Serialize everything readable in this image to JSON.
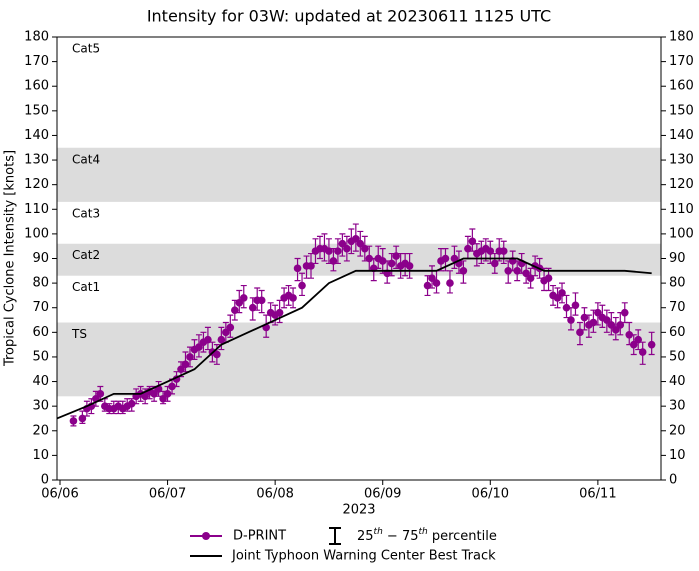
{
  "chart_data": {
    "type": "errorbar_line",
    "title": "Intensity for 03W: updated at 20230611 1125 UTC",
    "x_label": "2023",
    "y_label": "Tropical Cyclone Intensity [knots]",
    "xlim": [
      "2023-06-05T23:20",
      "2023-06-11T14:05"
    ],
    "xticks": [
      {
        "value": "2023-06-06T00:00",
        "label": "06/06"
      },
      {
        "value": "2023-06-07T00:00",
        "label": "06/07"
      },
      {
        "value": "2023-06-08T00:00",
        "label": "06/08"
      },
      {
        "value": "2023-06-09T00:00",
        "label": "06/09"
      },
      {
        "value": "2023-06-10T00:00",
        "label": "06/10"
      },
      {
        "value": "2023-06-11T00:00",
        "label": "06/11"
      }
    ],
    "ylim": [
      0,
      180
    ],
    "yticks": [
      0,
      10,
      20,
      30,
      40,
      50,
      60,
      70,
      80,
      90,
      100,
      110,
      120,
      130,
      140,
      150,
      160,
      170,
      180
    ],
    "intensity_categories": [
      {
        "label": "TS",
        "range": [
          34,
          64
        ],
        "shaded": true
      },
      {
        "label": "Cat1",
        "range": [
          64,
          83
        ],
        "shaded": false
      },
      {
        "label": "Cat2",
        "range": [
          83,
          96
        ],
        "shaded": true
      },
      {
        "label": "Cat3",
        "range": [
          96,
          113
        ],
        "shaded": false
      },
      {
        "label": "Cat4",
        "range": [
          113,
          135
        ],
        "shaded": true
      },
      {
        "label": "Cat5",
        "range": [
          135,
          180
        ],
        "shaded": false
      }
    ],
    "band_color": "#dcdcdc",
    "errorbar_label": [
      "25",
      "th",
      " − 75",
      "th",
      " percentile"
    ],
    "series": [
      {
        "name": "D-PRINT",
        "color": "#8b008b",
        "style": "markers",
        "x": [
          "2023-06-06T03:00",
          "2023-06-06T05:00",
          "2023-06-06T06:00",
          "2023-06-06T07:00",
          "2023-06-06T08:00",
          "2023-06-06T09:00",
          "2023-06-06T10:00",
          "2023-06-06T11:00",
          "2023-06-06T12:00",
          "2023-06-06T13:00",
          "2023-06-06T14:00",
          "2023-06-06T15:00",
          "2023-06-06T16:00",
          "2023-06-06T17:00",
          "2023-06-06T18:00",
          "2023-06-06T19:00",
          "2023-06-06T20:00",
          "2023-06-06T21:00",
          "2023-06-06T22:00",
          "2023-06-06T23:00",
          "2023-06-07T00:00",
          "2023-06-07T01:00",
          "2023-06-07T02:00",
          "2023-06-07T03:00",
          "2023-06-07T04:00",
          "2023-06-07T05:00",
          "2023-06-07T06:00",
          "2023-06-07T07:00",
          "2023-06-07T08:00",
          "2023-06-07T09:00",
          "2023-06-07T10:00",
          "2023-06-07T11:00",
          "2023-06-07T12:00",
          "2023-06-07T13:00",
          "2023-06-07T14:00",
          "2023-06-07T15:00",
          "2023-06-07T16:00",
          "2023-06-07T17:00",
          "2023-06-07T19:00",
          "2023-06-07T20:00",
          "2023-06-07T21:00",
          "2023-06-07T22:00",
          "2023-06-07T23:00",
          "2023-06-08T00:00",
          "2023-06-08T01:00",
          "2023-06-08T02:00",
          "2023-06-08T03:00",
          "2023-06-08T04:00",
          "2023-06-08T05:00",
          "2023-06-08T06:00",
          "2023-06-08T07:00",
          "2023-06-08T08:00",
          "2023-06-08T09:00",
          "2023-06-08T10:00",
          "2023-06-08T11:00",
          "2023-06-08T12:00",
          "2023-06-08T13:00",
          "2023-06-08T14:00",
          "2023-06-08T15:00",
          "2023-06-08T16:00",
          "2023-06-08T17:00",
          "2023-06-08T18:00",
          "2023-06-08T19:00",
          "2023-06-08T20:00",
          "2023-06-08T21:00",
          "2023-06-08T22:00",
          "2023-06-08T23:00",
          "2023-06-09T00:00",
          "2023-06-09T01:00",
          "2023-06-09T02:00",
          "2023-06-09T03:00",
          "2023-06-09T04:00",
          "2023-06-09T05:00",
          "2023-06-09T06:00",
          "2023-06-09T10:00",
          "2023-06-09T11:00",
          "2023-06-09T12:00",
          "2023-06-09T13:00",
          "2023-06-09T14:00",
          "2023-06-09T15:00",
          "2023-06-09T16:00",
          "2023-06-09T17:00",
          "2023-06-09T18:00",
          "2023-06-09T19:00",
          "2023-06-09T20:00",
          "2023-06-09T21:00",
          "2023-06-09T22:00",
          "2023-06-09T23:00",
          "2023-06-10T00:00",
          "2023-06-10T01:00",
          "2023-06-10T02:00",
          "2023-06-10T03:00",
          "2023-06-10T04:00",
          "2023-06-10T05:00",
          "2023-06-10T06:00",
          "2023-06-10T07:00",
          "2023-06-10T08:00",
          "2023-06-10T09:00",
          "2023-06-10T10:00",
          "2023-06-10T11:00",
          "2023-06-10T12:00",
          "2023-06-10T13:00",
          "2023-06-10T14:00",
          "2023-06-10T15:00",
          "2023-06-10T16:00",
          "2023-06-10T17:00",
          "2023-06-10T18:00",
          "2023-06-10T19:00",
          "2023-06-10T20:00",
          "2023-06-10T21:00",
          "2023-06-10T22:00",
          "2023-06-10T23:00",
          "2023-06-11T00:00",
          "2023-06-11T01:00",
          "2023-06-11T02:00",
          "2023-06-11T03:00",
          "2023-06-11T04:00",
          "2023-06-11T05:00",
          "2023-06-11T06:00",
          "2023-06-11T07:00",
          "2023-06-11T08:00",
          "2023-06-11T09:00",
          "2023-06-11T10:00",
          "2023-06-11T12:00"
        ],
        "values": [
          24,
          25,
          29,
          30,
          33,
          35,
          30,
          29,
          29,
          30,
          29,
          30,
          31,
          34,
          35,
          34,
          36,
          35,
          37,
          33,
          35,
          38,
          41,
          45,
          47,
          50,
          53,
          54,
          56,
          57,
          52,
          51,
          57,
          60,
          62,
          69,
          72,
          74,
          70,
          73,
          73,
          62,
          68,
          67,
          68,
          74,
          75,
          74,
          86,
          79,
          87,
          87,
          93,
          94,
          94,
          93,
          89,
          93,
          96,
          94,
          97,
          98,
          96,
          94,
          90,
          86,
          90,
          89,
          84,
          88,
          91,
          87,
          88,
          87,
          79,
          82,
          80,
          89,
          90,
          80,
          90,
          88,
          85,
          94,
          97,
          92,
          93,
          94,
          93,
          88,
          93,
          93,
          85,
          89,
          85,
          88,
          84,
          82,
          87,
          86,
          81,
          82,
          75,
          74,
          76,
          70,
          65,
          71,
          60,
          66,
          63,
          64,
          68,
          66,
          65,
          63,
          61,
          63,
          68,
          59,
          55,
          57,
          52,
          55
        ],
        "q25": [
          22,
          23,
          26,
          27,
          30,
          32,
          28,
          27,
          27,
          27,
          27,
          28,
          28,
          31,
          32,
          31,
          33,
          32,
          34,
          31,
          32,
          35,
          38,
          42,
          44,
          46,
          49,
          50,
          52,
          53,
          48,
          47,
          53,
          56,
          58,
          65,
          68,
          70,
          65,
          69,
          68,
          58,
          64,
          63,
          64,
          70,
          71,
          70,
          81,
          75,
          82,
          82,
          88,
          90,
          89,
          88,
          85,
          88,
          91,
          89,
          92,
          93,
          91,
          89,
          85,
          81,
          86,
          84,
          80,
          83,
          86,
          82,
          83,
          82,
          75,
          78,
          76,
          85,
          85,
          76,
          86,
          84,
          80,
          90,
          93,
          87,
          88,
          89,
          88,
          84,
          89,
          88,
          80,
          85,
          81,
          84,
          80,
          78,
          83,
          82,
          77,
          77,
          71,
          70,
          72,
          66,
          61,
          67,
          55,
          61,
          58,
          60,
          63,
          62,
          60,
          59,
          57,
          59,
          64,
          55,
          51,
          53,
          47,
          51
        ],
        "q75": [
          26,
          28,
          32,
          33,
          36,
          38,
          33,
          31,
          32,
          32,
          32,
          33,
          33,
          37,
          38,
          37,
          38,
          38,
          40,
          36,
          38,
          41,
          44,
          48,
          52,
          54,
          57,
          59,
          60,
          62,
          56,
          55,
          62,
          64,
          67,
          73,
          77,
          79,
          74,
          78,
          77,
          67,
          72,
          71,
          73,
          78,
          79,
          78,
          90,
          84,
          91,
          92,
          98,
          99,
          100,
          98,
          94,
          98,
          100,
          99,
          102,
          104,
          101,
          99,
          95,
          90,
          95,
          94,
          89,
          92,
          95,
          92,
          92,
          92,
          83,
          87,
          85,
          94,
          94,
          85,
          95,
          93,
          89,
          99,
          102,
          96,
          97,
          98,
          97,
          92,
          98,
          97,
          89,
          93,
          89,
          92,
          88,
          86,
          91,
          90,
          86,
          86,
          79,
          78,
          80,
          75,
          70,
          76,
          64,
          70,
          67,
          69,
          72,
          71,
          69,
          68,
          66,
          68,
          72,
          64,
          59,
          61,
          56,
          60
        ]
      },
      {
        "name": "Joint Typhoon Warning Center Best Track",
        "color": "#000000",
        "style": "line",
        "x": [
          "2023-06-05T23:20",
          "2023-06-06T06:00",
          "2023-06-06T12:00",
          "2023-06-06T18:00",
          "2023-06-07T00:00",
          "2023-06-07T06:00",
          "2023-06-07T12:00",
          "2023-06-07T18:00",
          "2023-06-08T00:00",
          "2023-06-08T06:00",
          "2023-06-08T12:00",
          "2023-06-08T18:00",
          "2023-06-09T00:00",
          "2023-06-09T06:00",
          "2023-06-09T12:00",
          "2023-06-09T18:00",
          "2023-06-10T00:00",
          "2023-06-10T06:00",
          "2023-06-10T12:00",
          "2023-06-10T18:00",
          "2023-06-11T00:00",
          "2023-06-11T06:00",
          "2023-06-11T12:00"
        ],
        "values": [
          25,
          30,
          35,
          35,
          40,
          45,
          55,
          60,
          65,
          70,
          80,
          85,
          85,
          85,
          85,
          90,
          90,
          90,
          85,
          85,
          85,
          85,
          84
        ]
      }
    ]
  }
}
